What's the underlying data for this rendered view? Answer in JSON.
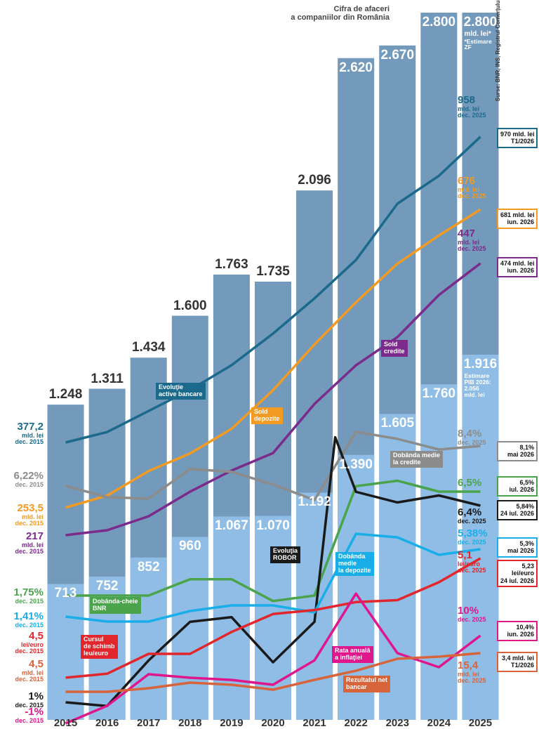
{
  "chart_data": {
    "type": "combo",
    "title": [
      "Cifra de afaceri",
      "a companiilor din România"
    ],
    "source": "Surse: BNR, INS, Registrul Comerţului",
    "categories": [
      "2015",
      "2016",
      "2017",
      "2018",
      "2019",
      "2020",
      "2021",
      "2022",
      "2023",
      "2024",
      "2025"
    ],
    "ylim": [
      0,
      2800
    ],
    "y2lim": [
      0,
      3710
    ],
    "xlim": [
      2014.5,
      2025.5
    ],
    "series": [
      {
        "color": "#7399bb",
        "values": [
          1248,
          1311,
          1434,
          1600,
          1763,
          1735,
          2096,
          2620,
          2670,
          2800,
          2800
        ],
        "value_labels": [
          "1.248",
          "1.311",
          "1.434",
          "1.600",
          "1.763",
          "1.735",
          "2.096",
          "2.620",
          "2.670",
          "2.800",
          "2.800"
        ],
        "notes": [
          "mld. lei*",
          "*Estimare",
          "ZF"
        ]
      },
      {
        "color": "#8fbde6",
        "axis": "y2",
        "values": [
          713,
          752,
          852,
          960,
          1067,
          1070,
          1192,
          1390,
          1605,
          1760,
          1916
        ],
        "value_labels": [
          "713",
          "752",
          "852",
          "960",
          "1.067",
          "1.070",
          "1.192",
          "1.390",
          "1.605",
          "1.760",
          "1.916"
        ],
        "notes": [
          "Estimare",
          "PIB 2026:",
          "2.056",
          "mld. lei"
        ]
      }
    ],
    "lines": [
      {
        "name": [
          "Evoluţie",
          "active bancare"
        ],
        "color": "#1b6a8c",
        "x": [
          2015,
          2016,
          2017,
          2018,
          2019,
          2020,
          2021,
          2022,
          2023,
          2024,
          2025
        ],
        "values": [
          377.2,
          397,
          437,
          477,
          524,
          584,
          651,
          724,
          831,
          884,
          958
        ],
        "ylim": [
          -150,
          1194
        ],
        "start": [
          "377,2",
          "mld. lei",
          "dec. 2015"
        ],
        "end": [
          "958",
          "mld. lei",
          "dec. 2025"
        ],
        "box": [
          "970 mld. lei",
          "T1/2026"
        ]
      },
      {
        "name": [
          "Sold",
          "depozite"
        ],
        "color": "#f29a22",
        "x": [
          2015,
          2016,
          2017,
          2018,
          2019,
          2020,
          2021,
          2022,
          2023,
          2024,
          2025
        ],
        "values": [
          253.5,
          270.4,
          305.3,
          330.2,
          365.1,
          419.9,
          484.7,
          544.4,
          599.2,
          639.1,
          676
        ],
        "ylim": [
          -47.4,
          955
        ],
        "start": [
          "253,5",
          "mld. lei",
          "dec. 2015"
        ],
        "end": [
          "676",
          "mld. lei",
          "dec. 2025"
        ],
        "box": [
          "681 mld. lei",
          "iun. 2026"
        ]
      },
      {
        "name": [
          "Sold",
          "credite"
        ],
        "color": "#7a2b8b",
        "x": [
          2015,
          2016,
          2017,
          2018,
          2019,
          2020,
          2021,
          2022,
          2023,
          2024,
          2025
        ],
        "values": [
          217,
          221.2,
          233,
          253.8,
          271.7,
          286.5,
          328.1,
          360.8,
          384.6,
          420.3,
          447
        ],
        "ylim": [
          60.7,
          659.2
        ],
        "start": [
          "217",
          "mld. lei",
          "dec. 2015"
        ],
        "end": [
          "447",
          "mld. lei",
          "dec. 2025"
        ],
        "box": [
          "474 mld. lei",
          "iun. 2026"
        ]
      },
      {
        "name": [
          "Dobânda medie",
          "la credite"
        ],
        "color": "#8c8c8c",
        "x": [
          2015,
          2016,
          2017,
          2018,
          2019,
          2020,
          2021,
          2022,
          2023,
          2024,
          2025
        ],
        "values": [
          6.22,
          5.61,
          5.53,
          7.14,
          6.99,
          6.3,
          5.45,
          9.17,
          8.79,
          8.21,
          8.4
        ],
        "ylim": [
          -6.54,
          32.04
        ],
        "start": [
          "6,22%",
          "dec. 2015"
        ],
        "end": [
          "8,4%",
          "dec. 2025"
        ],
        "box": [
          "8,1%",
          "mai 2026"
        ]
      },
      {
        "name": [
          "Dobânda-cheie",
          "BNR"
        ],
        "color": "#4ba34b",
        "x": [
          2015,
          2016,
          2017,
          2018,
          2019,
          2020,
          2021,
          2022,
          2023,
          2024,
          2025
        ],
        "values": [
          1.75,
          1.75,
          1.75,
          2.5,
          2.5,
          1.5,
          1.75,
          6.75,
          7,
          6.5,
          6.5
        ],
        "ylim": [
          -3.93,
          28.39
        ],
        "start": [
          "1,75%",
          "dec. 2015"
        ],
        "end": [
          "6,5%"
        ],
        "box": [
          "6,5%",
          "iul. 2026"
        ]
      },
      {
        "name": [
          "Evoluţia",
          "ROBOR"
        ],
        "color": "#1a1a1a",
        "x": [
          2015,
          2016,
          2017,
          2018,
          2019,
          2020,
          2021,
          2021.5,
          2022,
          2023,
          2024,
          2025
        ],
        "values": [
          1,
          0.9,
          2.15,
          3.21,
          3.34,
          2.1,
          3.21,
          8.28,
          6.78,
          6.49,
          6.68,
          6.4
        ],
        "ylim": [
          0.518,
          19.94
        ],
        "start": [
          "1%",
          "dec. 2015"
        ],
        "end": [
          "6,4%",
          "dec. 2025"
        ],
        "box": [
          "5,84%",
          "24 iul. 2026"
        ]
      },
      {
        "name": [
          "Dobânda",
          "medie",
          "la depozite"
        ],
        "color": "#1aaee8",
        "x": [
          2015,
          2016,
          2017,
          2018,
          2019,
          2020,
          2021,
          2022,
          2023,
          2024,
          2025
        ],
        "values": [
          1.41,
          1.12,
          1.12,
          1.74,
          2.07,
          2.07,
          1.66,
          6.29,
          6.08,
          5.05,
          5.38
        ],
        "ylim": [
          -4.67,
          36.98
        ],
        "start": [
          "1,41%",
          "dec. 2015"
        ],
        "end": [
          "5,38%",
          "dec. 2025"
        ],
        "box": [
          "5,3%",
          "mai 2026"
        ]
      },
      {
        "name": [
          "Cursul",
          "de schimb",
          "leu/euro"
        ],
        "color": "#e2262b",
        "x": [
          2015,
          2016,
          2017,
          2018,
          2019,
          2020,
          2021,
          2022,
          2023,
          2024,
          2025
        ],
        "values": [
          4.5,
          4.52,
          4.62,
          4.62,
          4.73,
          4.82,
          4.84,
          4.88,
          4.89,
          4.98,
          5.1
        ],
        "ylim": [
          4.288,
          7.843
        ],
        "start": [
          "4,5",
          "lei/euro",
          "dec. 2015"
        ],
        "end": [
          "5,1",
          "lei/euro",
          "dec. 2025"
        ],
        "box": [
          "5,23",
          "lei/euro",
          "24 iul. 2026"
        ]
      },
      {
        "name": [
          "Rata anuală",
          "a inflaţiei"
        ],
        "color": "#e0168c",
        "x": [
          2015,
          2016,
          2017,
          2018,
          2019,
          2020,
          2021,
          2022,
          2023,
          2024,
          2025
        ],
        "values": [
          -1,
          1.2,
          5.16,
          4.72,
          4.45,
          3.84,
          6.9,
          15.27,
          7.8,
          6.04,
          10
        ],
        "ylim": [
          -0.56,
          88.08
        ],
        "start": [
          "-1%",
          "dec. 2015"
        ],
        "end": [
          "10%",
          "dec. 2025"
        ],
        "box": [
          "10,4%",
          "iun. 2026"
        ]
      },
      {
        "name": [
          "Rezultatul net",
          "bancar"
        ],
        "color": "#d8643c",
        "x": [
          2015,
          2016,
          2017,
          2018,
          2019,
          2020,
          2021,
          2022,
          2023,
          2024,
          2025
        ],
        "values": [
          4.5,
          4.5,
          5.49,
          7.08,
          6.49,
          5.1,
          7.87,
          10.45,
          13.81,
          14.4,
          15.4
        ],
        "ylim": [
          -3.42,
          195.99
        ],
        "start": [
          "4,5",
          "mld. lei",
          "dec. 2015"
        ],
        "end": [
          "15,4",
          "mld. lei",
          "dec. 2025"
        ],
        "box": [
          "3,4 mld. lei",
          "T1/2026"
        ]
      }
    ]
  }
}
